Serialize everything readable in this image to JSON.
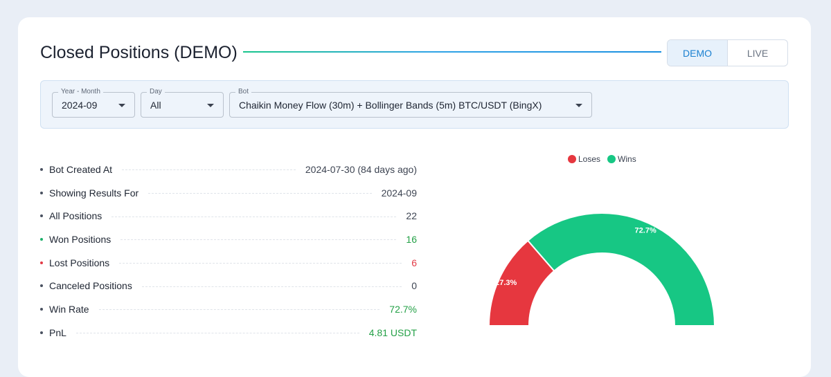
{
  "header": {
    "title": "Closed Positions (DEMO)",
    "toggle": [
      {
        "label": "DEMO",
        "active": true
      },
      {
        "label": "LIVE",
        "active": false
      }
    ]
  },
  "filters": {
    "year_month": {
      "label": "Year - Month",
      "value": "2024-09"
    },
    "day": {
      "label": "Day",
      "value": "All"
    },
    "bot": {
      "label": "Bot",
      "value": "Chaikin Money Flow (30m) + Bollinger Bands (5m) BTC/USDT (BingX)"
    }
  },
  "stats": [
    {
      "name": "Bot Created At",
      "value": "2024-07-30 (84 days ago)"
    },
    {
      "name": "Showing Results For",
      "value": "2024-09"
    },
    {
      "name": "All Positions",
      "value": "22"
    },
    {
      "name": "Won Positions",
      "value": "16"
    },
    {
      "name": "Lost Positions",
      "value": "6"
    },
    {
      "name": "Canceled Positions",
      "value": "0"
    },
    {
      "name": "Win Rate",
      "value": "72.7%"
    },
    {
      "name": "PnL",
      "value": "4.81 USDT"
    }
  ],
  "colors": {
    "loses": "#e6373f",
    "wins": "#17c784",
    "accent": "#1a80d0"
  },
  "chart_data": {
    "type": "pie",
    "subtype": "half-donut",
    "legend": [
      "Loses",
      "Wins"
    ],
    "legend_position": "top",
    "series": [
      {
        "name": "Loses",
        "value": 6,
        "percent_label": "27.3%"
      },
      {
        "name": "Wins",
        "value": 16,
        "percent_label": "72.7%"
      }
    ]
  }
}
